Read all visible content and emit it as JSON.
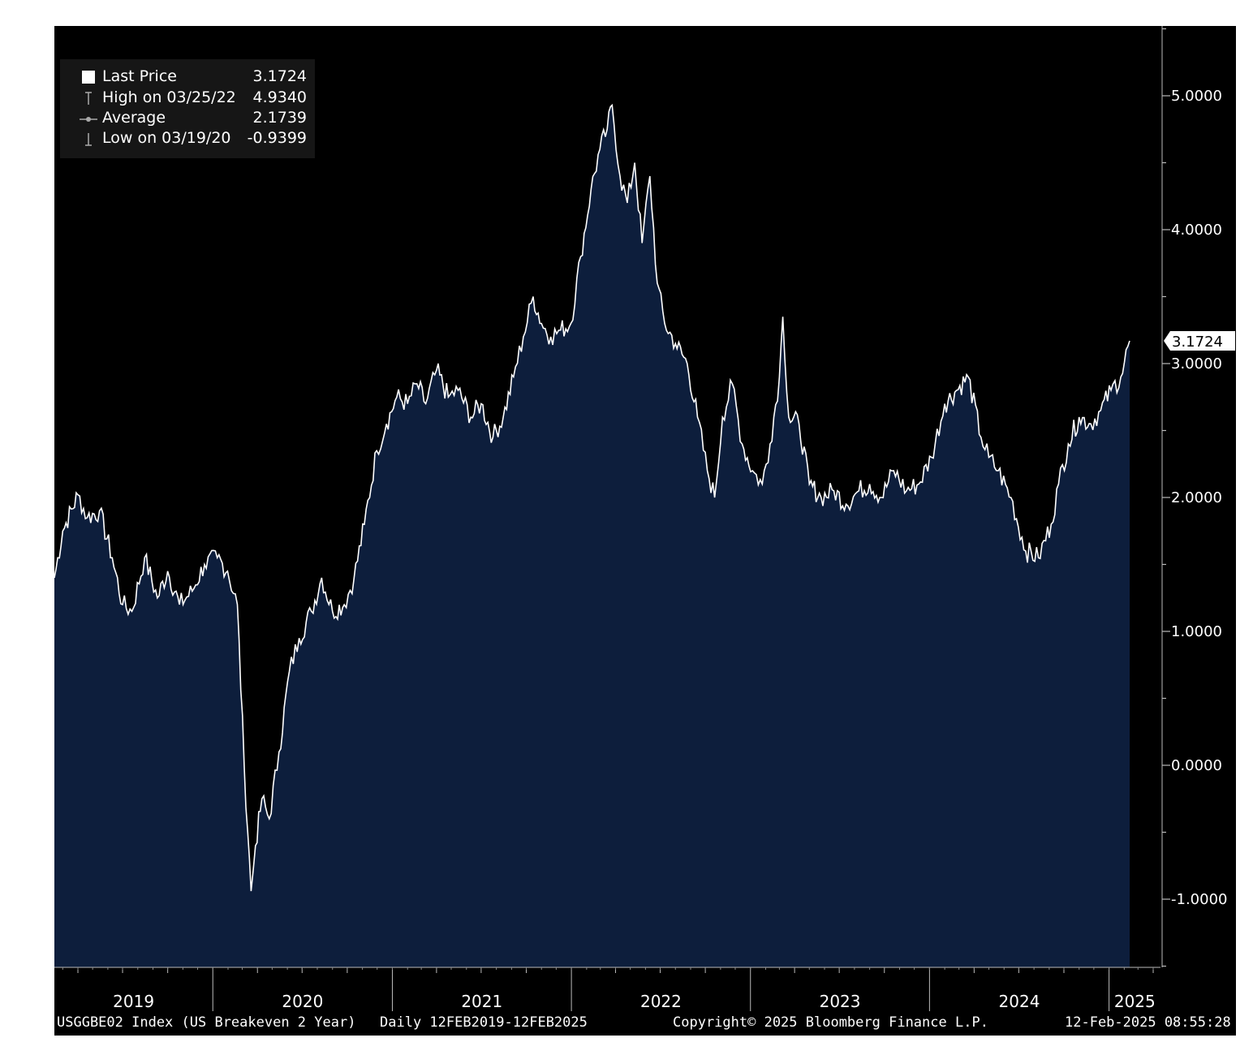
{
  "legend": {
    "items": [
      {
        "label": "Last Price",
        "value": "3.1724",
        "symbol": "square-icon"
      },
      {
        "label": "High on 03/25/22",
        "value": "4.9340",
        "symbol": "high-marker-icon"
      },
      {
        "label": "Average",
        "value": "2.1739",
        "symbol": "average-marker-icon"
      },
      {
        "label": "Low on 03/19/20",
        "value": "-0.9399",
        "symbol": "low-marker-icon"
      }
    ]
  },
  "last_price_badge": "3.1724",
  "footer": {
    "index": "USGGBE02 Index (US Breakeven 2 Year)",
    "range": "Daily 12FEB2019-12FEB2025",
    "copyright": "Copyright© 2025 Bloomberg Finance L.P.",
    "timestamp": "12-Feb-2025 08:55:28"
  },
  "colors": {
    "background": "#000000",
    "area_fill": "#0d1e3c",
    "line": "#ffffff"
  },
  "chart_data": {
    "type": "area",
    "ylim": [
      -1.5,
      5.5
    ],
    "y_ticks": [
      "-1.0000",
      "0.0000",
      "1.0000",
      "2.0000",
      "3.0000",
      "4.0000",
      "5.0000"
    ],
    "y_tick_values": [
      -1,
      0,
      1,
      2,
      3,
      4,
      5
    ],
    "x_tick_labels": [
      "2019",
      "2020",
      "2021",
      "2022",
      "2023",
      "2024",
      "2025"
    ],
    "x_range": [
      "2019-02-12",
      "2025-02-12"
    ],
    "grid": false,
    "legend_position": "top-left",
    "series": [
      {
        "x": [
          "2019-02-12",
          "2019-03-01",
          "2019-04-01",
          "2019-04-20",
          "2019-05-15",
          "2019-06-10",
          "2019-07-01",
          "2019-07-20",
          "2019-08-15",
          "2019-09-10",
          "2019-10-01",
          "2019-10-25",
          "2019-11-20",
          "2019-12-15",
          "2020-01-10",
          "2020-01-31",
          "2020-02-20",
          "2020-03-05",
          "2020-03-19",
          "2020-03-28",
          "2020-04-10",
          "2020-04-25",
          "2020-05-15",
          "2020-06-05",
          "2020-06-25",
          "2020-07-20",
          "2020-08-10",
          "2020-09-01",
          "2020-09-25",
          "2020-10-15",
          "2020-11-05",
          "2020-11-30",
          "2020-12-20",
          "2021-01-10",
          "2021-02-01",
          "2021-02-20",
          "2021-03-10",
          "2021-04-01",
          "2021-04-25",
          "2021-05-15",
          "2021-06-10",
          "2021-07-01",
          "2021-07-25",
          "2021-08-15",
          "2021-09-05",
          "2021-09-25",
          "2021-10-15",
          "2021-11-01",
          "2021-11-20",
          "2021-12-10",
          "2021-12-31",
          "2022-01-20",
          "2022-02-10",
          "2022-02-28",
          "2022-03-15",
          "2022-03-25",
          "2022-04-10",
          "2022-04-25",
          "2022-05-10",
          "2022-05-25",
          "2022-06-10",
          "2022-06-25",
          "2022-07-10",
          "2022-08-01",
          "2022-08-25",
          "2022-09-15",
          "2022-10-05",
          "2022-10-20",
          "2022-11-05",
          "2022-11-25",
          "2022-12-15",
          "2023-01-05",
          "2023-01-25",
          "2023-02-10",
          "2023-03-01",
          "2023-03-08",
          "2023-03-20",
          "2023-04-10",
          "2023-05-01",
          "2023-05-25",
          "2023-06-20",
          "2023-07-15",
          "2023-08-10",
          "2023-09-01",
          "2023-09-25",
          "2023-10-20",
          "2023-11-15",
          "2023-12-10",
          "2024-01-05",
          "2024-02-01",
          "2024-02-25",
          "2024-03-20",
          "2024-04-15",
          "2024-05-01",
          "2024-05-20",
          "2024-06-15",
          "2024-07-15",
          "2024-08-10",
          "2024-09-05",
          "2024-09-20",
          "2024-10-10",
          "2024-11-01",
          "2024-11-25",
          "2024-12-15",
          "2025-01-05",
          "2025-01-25",
          "2025-02-12"
        ],
        "values": [
          1.4,
          1.75,
          2.02,
          1.85,
          1.9,
          1.55,
          1.2,
          1.15,
          1.55,
          1.25,
          1.45,
          1.2,
          1.3,
          1.5,
          1.55,
          1.45,
          1.2,
          0.0,
          -0.94,
          -0.6,
          -0.25,
          -0.4,
          0.1,
          0.7,
          0.95,
          1.15,
          1.4,
          1.15,
          1.2,
          1.4,
          1.8,
          2.35,
          2.55,
          2.75,
          2.7,
          2.85,
          2.7,
          2.95,
          2.75,
          2.8,
          2.6,
          2.7,
          2.45,
          2.6,
          2.9,
          3.2,
          3.5,
          3.3,
          3.2,
          3.25,
          3.3,
          3.8,
          4.3,
          4.6,
          4.75,
          4.93,
          4.4,
          4.2,
          4.5,
          3.9,
          4.4,
          3.6,
          3.3,
          3.15,
          3.0,
          2.6,
          2.2,
          2.0,
          2.6,
          2.85,
          2.4,
          2.2,
          2.1,
          2.4,
          2.9,
          3.35,
          2.6,
          2.55,
          2.1,
          2.0,
          2.05,
          1.95,
          2.05,
          2.1,
          2.0,
          2.2,
          2.05,
          2.1,
          2.3,
          2.7,
          2.8,
          2.9,
          2.45,
          2.3,
          2.2,
          2.0,
          1.6,
          1.55,
          1.8,
          2.1,
          2.4,
          2.6,
          2.55,
          2.65,
          2.8,
          2.9,
          3.17
        ]
      }
    ]
  }
}
